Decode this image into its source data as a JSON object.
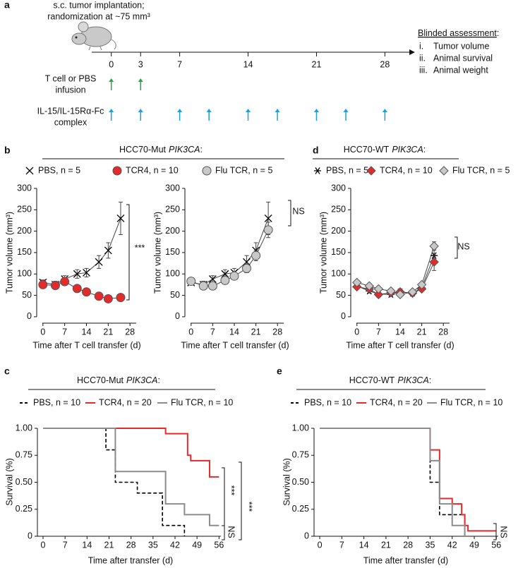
{
  "chart_data": [
    {
      "type": "timeline",
      "panel": "a",
      "annotation": [
        "s.c. tumor implantation;",
        "randomization at ~75 mm³"
      ],
      "xlim": [
        -2,
        30.5
      ],
      "xticks": [
        0,
        3,
        7,
        14,
        21,
        28
      ],
      "events": [
        {
          "label": [
            "T cell or PBS",
            "infusion"
          ],
          "color": "#22a84a",
          "x": [
            0,
            3
          ]
        },
        {
          "label": [
            "IL-15/IL-15Rα-Fc",
            "complex"
          ],
          "color": "#1e9fd9",
          "x": [
            0,
            3,
            7,
            10,
            14,
            17,
            21,
            24,
            28
          ]
        }
      ],
      "assessment": {
        "title": [
          "Blinded assessment",
          ":"
        ],
        "items": [
          [
            "i.",
            "Tumor volume"
          ],
          [
            "ii.",
            "Animal survival"
          ],
          [
            "iii.",
            "Animal weight"
          ]
        ]
      }
    },
    {
      "type": "line",
      "panel": "b",
      "header": [
        "HCC70-Mut",
        "PIK3CA",
        ":"
      ],
      "xlabel": "Time after T cell transfer (d)",
      "ylabel": "Tumor volume (mm³)",
      "xlim": [
        -2,
        30
      ],
      "ylim": [
        -15,
        300
      ],
      "xticks": [
        0,
        7,
        14,
        21,
        28
      ],
      "yticks": [
        0,
        50,
        100,
        150,
        200,
        250,
        300
      ],
      "x": [
        0,
        4,
        7,
        11,
        14,
        18,
        21,
        25
      ],
      "series": [
        {
          "name": "PBS, n = 5",
          "color": "#000000",
          "marker": "x",
          "values": [
            80,
            75,
            88,
            100,
            103,
            128,
            155,
            230
          ],
          "errors": [
            6,
            8,
            8,
            10,
            10,
            15,
            18,
            38
          ]
        },
        {
          "name": "TCR4, n = 10",
          "color": "#e32b2b",
          "marker": "circle",
          "values": [
            75,
            73,
            82,
            66,
            58,
            48,
            42,
            45
          ],
          "errors": [
            5,
            5,
            4,
            4,
            4,
            3,
            3,
            3
          ]
        }
      ],
      "annotations": [
        "***"
      ]
    },
    {
      "type": "line",
      "xlabel": "Time after T cell transfer (d)",
      "ylabel": "Tumor volume (mm³)",
      "xlim": [
        -2,
        30
      ],
      "ylim": [
        -15,
        300
      ],
      "xticks": [
        0,
        7,
        14,
        21,
        28
      ],
      "yticks": [
        0,
        50,
        100,
        150,
        200,
        250,
        300
      ],
      "x": [
        0,
        4,
        7,
        11,
        14,
        18,
        21,
        25
      ],
      "series": [
        {
          "color": "#000000",
          "marker": "x",
          "values": [
            80,
            75,
            88,
            100,
            103,
            128,
            155,
            230
          ],
          "errors": [
            6,
            8,
            8,
            10,
            10,
            15,
            18,
            38
          ]
        },
        {
          "name": "Flu TCR, n = 5",
          "color": "#c8c8c8",
          "marker": "circle",
          "values": [
            83,
            72,
            72,
            85,
            95,
            113,
            143,
            203
          ],
          "errors": [
            6,
            5,
            5,
            6,
            8,
            10,
            12,
            18
          ]
        }
      ],
      "annotations": [
        "NS"
      ]
    },
    {
      "type": "line",
      "panel": "d",
      "header": [
        "HCC70-WT",
        "PIK3CA",
        ":"
      ],
      "xlabel": "Time after T cell transfer (d)",
      "ylabel": "Tumor volume (mm³)",
      "xlim": [
        -2,
        30
      ],
      "ylim": [
        -15,
        300
      ],
      "xticks": [
        0,
        7,
        14,
        21,
        28
      ],
      "yticks": [
        0,
        50,
        100,
        150,
        200,
        250,
        300
      ],
      "x": [
        0,
        4,
        7,
        11,
        14,
        18,
        21,
        25
      ],
      "series": [
        {
          "name": "PBS, n = 5",
          "color": "#000000",
          "marker": "asterisk",
          "values": [
            72,
            60,
            53,
            52,
            58,
            55,
            68,
            143
          ],
          "errors": [
            5,
            5,
            5,
            4,
            4,
            4,
            6,
            15
          ]
        },
        {
          "name": "TCR4, n = 10",
          "color": "#e32b2b",
          "marker": "diamond",
          "values": [
            70,
            65,
            52,
            56,
            58,
            55,
            65,
            128
          ],
          "errors": [
            5,
            5,
            4,
            4,
            4,
            4,
            5,
            20
          ]
        },
        {
          "name": "Flu TCR, n = 5",
          "color": "#c8c8c8",
          "marker": "diamond",
          "values": [
            80,
            72,
            65,
            60,
            52,
            58,
            75,
            165
          ],
          "errors": [
            5,
            5,
            4,
            4,
            4,
            4,
            5,
            10
          ]
        }
      ],
      "annotations": [
        "NS"
      ]
    },
    {
      "type": "step",
      "panel": "c",
      "header": [
        "HCC70-Mut",
        "PIK3CA",
        ":"
      ],
      "xlabel": "Time after transfer (d)",
      "ylabel": "Survival (%)",
      "xlim": [
        -1.8,
        56.6
      ],
      "ylim": [
        0,
        1
      ],
      "xticks": [
        0,
        7,
        14,
        21,
        28,
        35,
        42,
        49,
        56
      ],
      "yticks": [
        0,
        0.25,
        {
          "value": 0.5,
          "label": "0.50"
        },
        0.75,
        {
          "value": 1,
          "label": "1.00"
        }
      ],
      "series": [
        {
          "name": "PBS, n = 10",
          "color": "#000000",
          "dashed": true,
          "x": [
            0,
            20,
            23,
            30,
            38,
            45
          ],
          "values": [
            1,
            0.8,
            0.5,
            0.4,
            0.1,
            0
          ]
        },
        {
          "name": "TCR4, n = 20",
          "color": "#e32b2b",
          "x": [
            0,
            39,
            46,
            47,
            53,
            56
          ],
          "values": [
            1,
            0.95,
            0.75,
            0.7,
            0.55,
            0.55
          ]
        },
        {
          "name": "Flu TCR, n = 10",
          "color": "#8c8c8c",
          "x": [
            0,
            23,
            39,
            45,
            53,
            56
          ],
          "values": [
            1,
            0.6,
            0.3,
            0.2,
            0.1,
            0.1
          ]
        }
      ],
      "annotations": [
        "***",
        "***",
        "NS"
      ]
    },
    {
      "type": "step",
      "panel": "e",
      "header": [
        "HCC70-WT",
        "PIK3CA",
        ":"
      ],
      "xlabel": "Time after transfer (d)",
      "ylabel": "Survival (%)",
      "xlim": [
        -1.8,
        56.6
      ],
      "ylim": [
        0,
        1
      ],
      "xticks": [
        0,
        7,
        14,
        21,
        28,
        35,
        42,
        49,
        56
      ],
      "yticks": [
        0,
        0.25,
        {
          "value": 0.5,
          "label": "0.50"
        },
        0.75,
        {
          "value": 1,
          "label": "1.00"
        }
      ],
      "series": [
        {
          "name": "PBS, n = 10",
          "color": "#000000",
          "dashed": true,
          "x": [
            0,
            35,
            38,
            46
          ],
          "values": [
            1,
            0.5,
            0.2,
            0
          ]
        },
        {
          "name": "TCR4, n = 20",
          "color": "#e32b2b",
          "x": [
            0,
            35,
            38,
            42,
            45,
            46,
            47,
            56
          ],
          "values": [
            1,
            0.8,
            0.35,
            0.3,
            0.2,
            0.1,
            0.05,
            0.05
          ]
        },
        {
          "name": "Flu TCR, n = 10",
          "color": "#8c8c8c",
          "x": [
            0,
            35,
            38,
            42,
            46
          ],
          "values": [
            1,
            0.7,
            0.3,
            0.1,
            0
          ]
        }
      ],
      "annotations": [
        "NS"
      ]
    }
  ]
}
